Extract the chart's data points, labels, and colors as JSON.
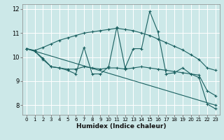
{
  "xlabel": "Humidex (Indice chaleur)",
  "xlim": [
    -0.5,
    23.5
  ],
  "ylim": [
    7.6,
    12.2
  ],
  "yticks": [
    8,
    9,
    10,
    11,
    12
  ],
  "xticks": [
    0,
    1,
    2,
    3,
    4,
    5,
    6,
    7,
    8,
    9,
    10,
    11,
    12,
    13,
    14,
    15,
    16,
    17,
    18,
    19,
    20,
    21,
    22,
    23
  ],
  "bg_color": "#cce8e8",
  "line_color": "#1a6060",
  "grid_color": "#ffffff",
  "lines": [
    {
      "x": [
        0,
        23
      ],
      "y": [
        10.35,
        8.0
      ]
    },
    {
      "x": [
        0,
        1,
        2,
        3,
        4,
        5,
        6,
        7,
        8,
        9,
        10,
        11,
        12,
        13,
        14,
        15,
        16,
        17,
        18,
        19,
        20,
        21,
        22,
        23
      ],
      "y": [
        10.35,
        10.28,
        10.4,
        10.55,
        10.7,
        10.8,
        10.9,
        11.0,
        11.05,
        11.1,
        11.15,
        11.2,
        11.15,
        11.1,
        11.0,
        10.9,
        10.75,
        10.6,
        10.45,
        10.3,
        10.1,
        9.9,
        9.55,
        9.45
      ]
    },
    {
      "x": [
        0,
        1,
        2,
        3,
        4,
        5,
        6,
        7,
        8,
        9,
        10,
        11,
        12,
        13,
        14,
        15,
        16,
        17,
        18,
        19,
        20,
        21,
        22,
        23
      ],
      "y": [
        10.35,
        10.25,
        9.9,
        9.6,
        9.55,
        9.5,
        9.5,
        9.6,
        9.55,
        9.5,
        9.55,
        9.55,
        9.5,
        9.55,
        9.6,
        9.55,
        9.5,
        9.45,
        9.4,
        9.35,
        9.3,
        9.25,
        8.6,
        8.4
      ]
    },
    {
      "x": [
        0,
        1,
        2,
        3,
        4,
        5,
        6,
        7,
        8,
        9,
        10,
        11,
        12,
        13,
        14,
        15,
        16,
        17,
        18,
        19,
        20,
        21,
        22,
        23
      ],
      "y": [
        10.35,
        10.25,
        9.95,
        9.6,
        9.55,
        9.45,
        9.3,
        10.4,
        9.3,
        9.3,
        9.6,
        11.25,
        9.55,
        10.35,
        10.35,
        11.9,
        11.05,
        9.3,
        9.35,
        9.55,
        9.3,
        9.15,
        8.05,
        7.85
      ]
    }
  ]
}
